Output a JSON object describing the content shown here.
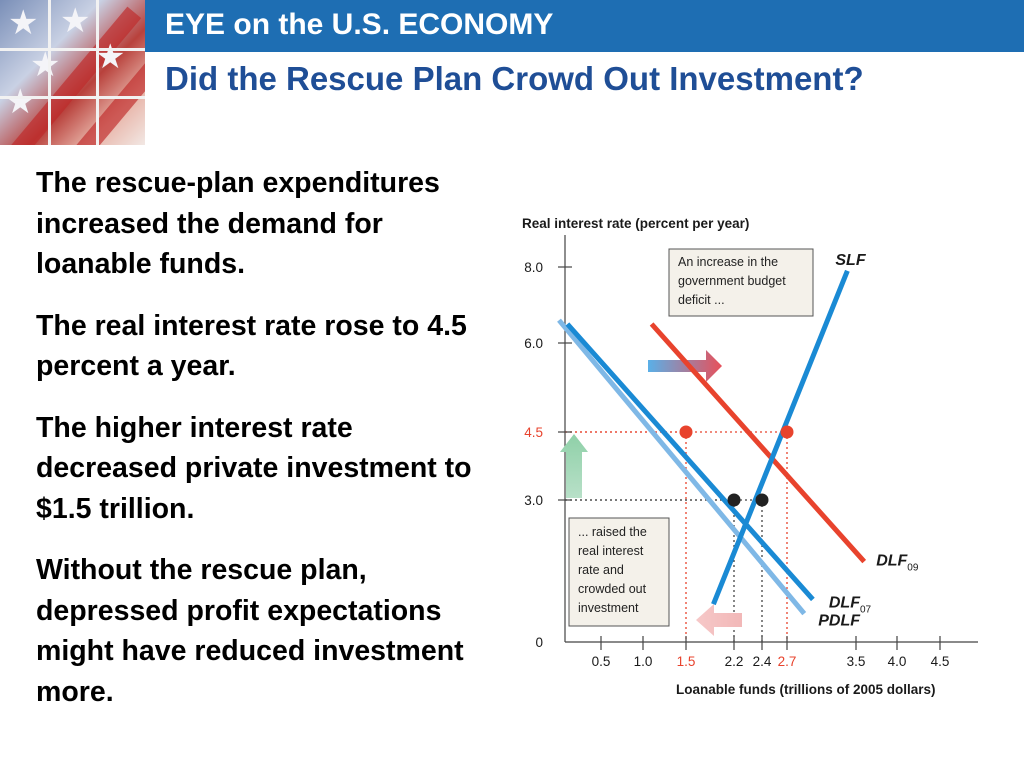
{
  "header": {
    "banner": "EYE on the U.S. ECONOMY",
    "title": "Did the Rescue Plan Crowd Out Investment?"
  },
  "body": {
    "paragraphs": [
      "The rescue-plan expenditures increased the demand for loanable funds.",
      "The real interest rate rose to 4.5 percent a year.",
      "The higher interest rate decreased private investment to $1.5 trillion.",
      "Without the rescue plan, depressed profit expectations might have reduced investment more."
    ]
  },
  "colors": {
    "banner": "#1e6eb3",
    "title": "#1f4e96",
    "slf": "#1a8ad4",
    "dlf07": "#1a8ad4",
    "pdlf": "#7fb8e6",
    "dlf09": "#e8432d",
    "highlight": "#e8432d"
  },
  "chart_data": {
    "type": "line",
    "ylabel": "Real interest rate (percent per year)",
    "xlabel": "Loanable funds (trillions of 2005 dollars)",
    "xlim": [
      0,
      5
    ],
    "ylim": [
      0,
      9
    ],
    "y_ticks": [
      {
        "value": 0,
        "label": "0"
      },
      {
        "value": 3.0,
        "label": "3.0"
      },
      {
        "value": 4.5,
        "label": "4.5",
        "highlight": true
      },
      {
        "value": 6.0,
        "label": "6.0"
      },
      {
        "value": 8.0,
        "label": "8.0"
      }
    ],
    "x_ticks": [
      {
        "value": 0.5,
        "label": "0.5"
      },
      {
        "value": 1.0,
        "label": "1.0"
      },
      {
        "value": 1.5,
        "label": "1.5",
        "highlight": true
      },
      {
        "value": 2.2,
        "label": "2.2"
      },
      {
        "value": 2.4,
        "label": "2.4"
      },
      {
        "value": 2.7,
        "label": "2.7",
        "highlight": true
      },
      {
        "value": 3.5,
        "label": "3.5"
      },
      {
        "value": 4.0,
        "label": "4.0"
      },
      {
        "value": 4.5,
        "label": "4.5"
      }
    ],
    "series": [
      {
        "name": "PDLF",
        "label_main": "PDLF",
        "label_sub": "",
        "x": [
          0.0,
          2.9
        ],
        "y": [
          6.6,
          0.6
        ],
        "color": "#7fb8e6"
      },
      {
        "name": "DLF07",
        "label_main": "DLF",
        "label_sub": "07",
        "x": [
          0.1,
          3.0
        ],
        "y": [
          6.5,
          0.9
        ],
        "color": "#1a8ad4"
      },
      {
        "name": "DLF09",
        "label_main": "DLF",
        "label_sub": "09",
        "x": [
          1.1,
          3.6
        ],
        "y": [
          6.5,
          1.7
        ],
        "color": "#e8432d"
      },
      {
        "name": "SLF",
        "label_main": "SLF",
        "label_sub": "",
        "x": [
          1.9,
          3.4
        ],
        "y": [
          0.8,
          7.9
        ],
        "color": "#1a8ad4"
      }
    ],
    "points": [
      {
        "x": 2.2,
        "y": 3.0,
        "color": "#222222"
      },
      {
        "x": 2.4,
        "y": 3.0,
        "color": "#222222"
      },
      {
        "x": 1.5,
        "y": 4.5,
        "color": "#e8432d"
      },
      {
        "x": 2.7,
        "y": 4.5,
        "color": "#e8432d"
      }
    ],
    "annotations": [
      {
        "lines": [
          "An increase in the",
          "government budget",
          "deficit ..."
        ]
      },
      {
        "lines": [
          "... raised the",
          "real interest",
          "rate and",
          "crowded out",
          "investment"
        ]
      }
    ]
  }
}
